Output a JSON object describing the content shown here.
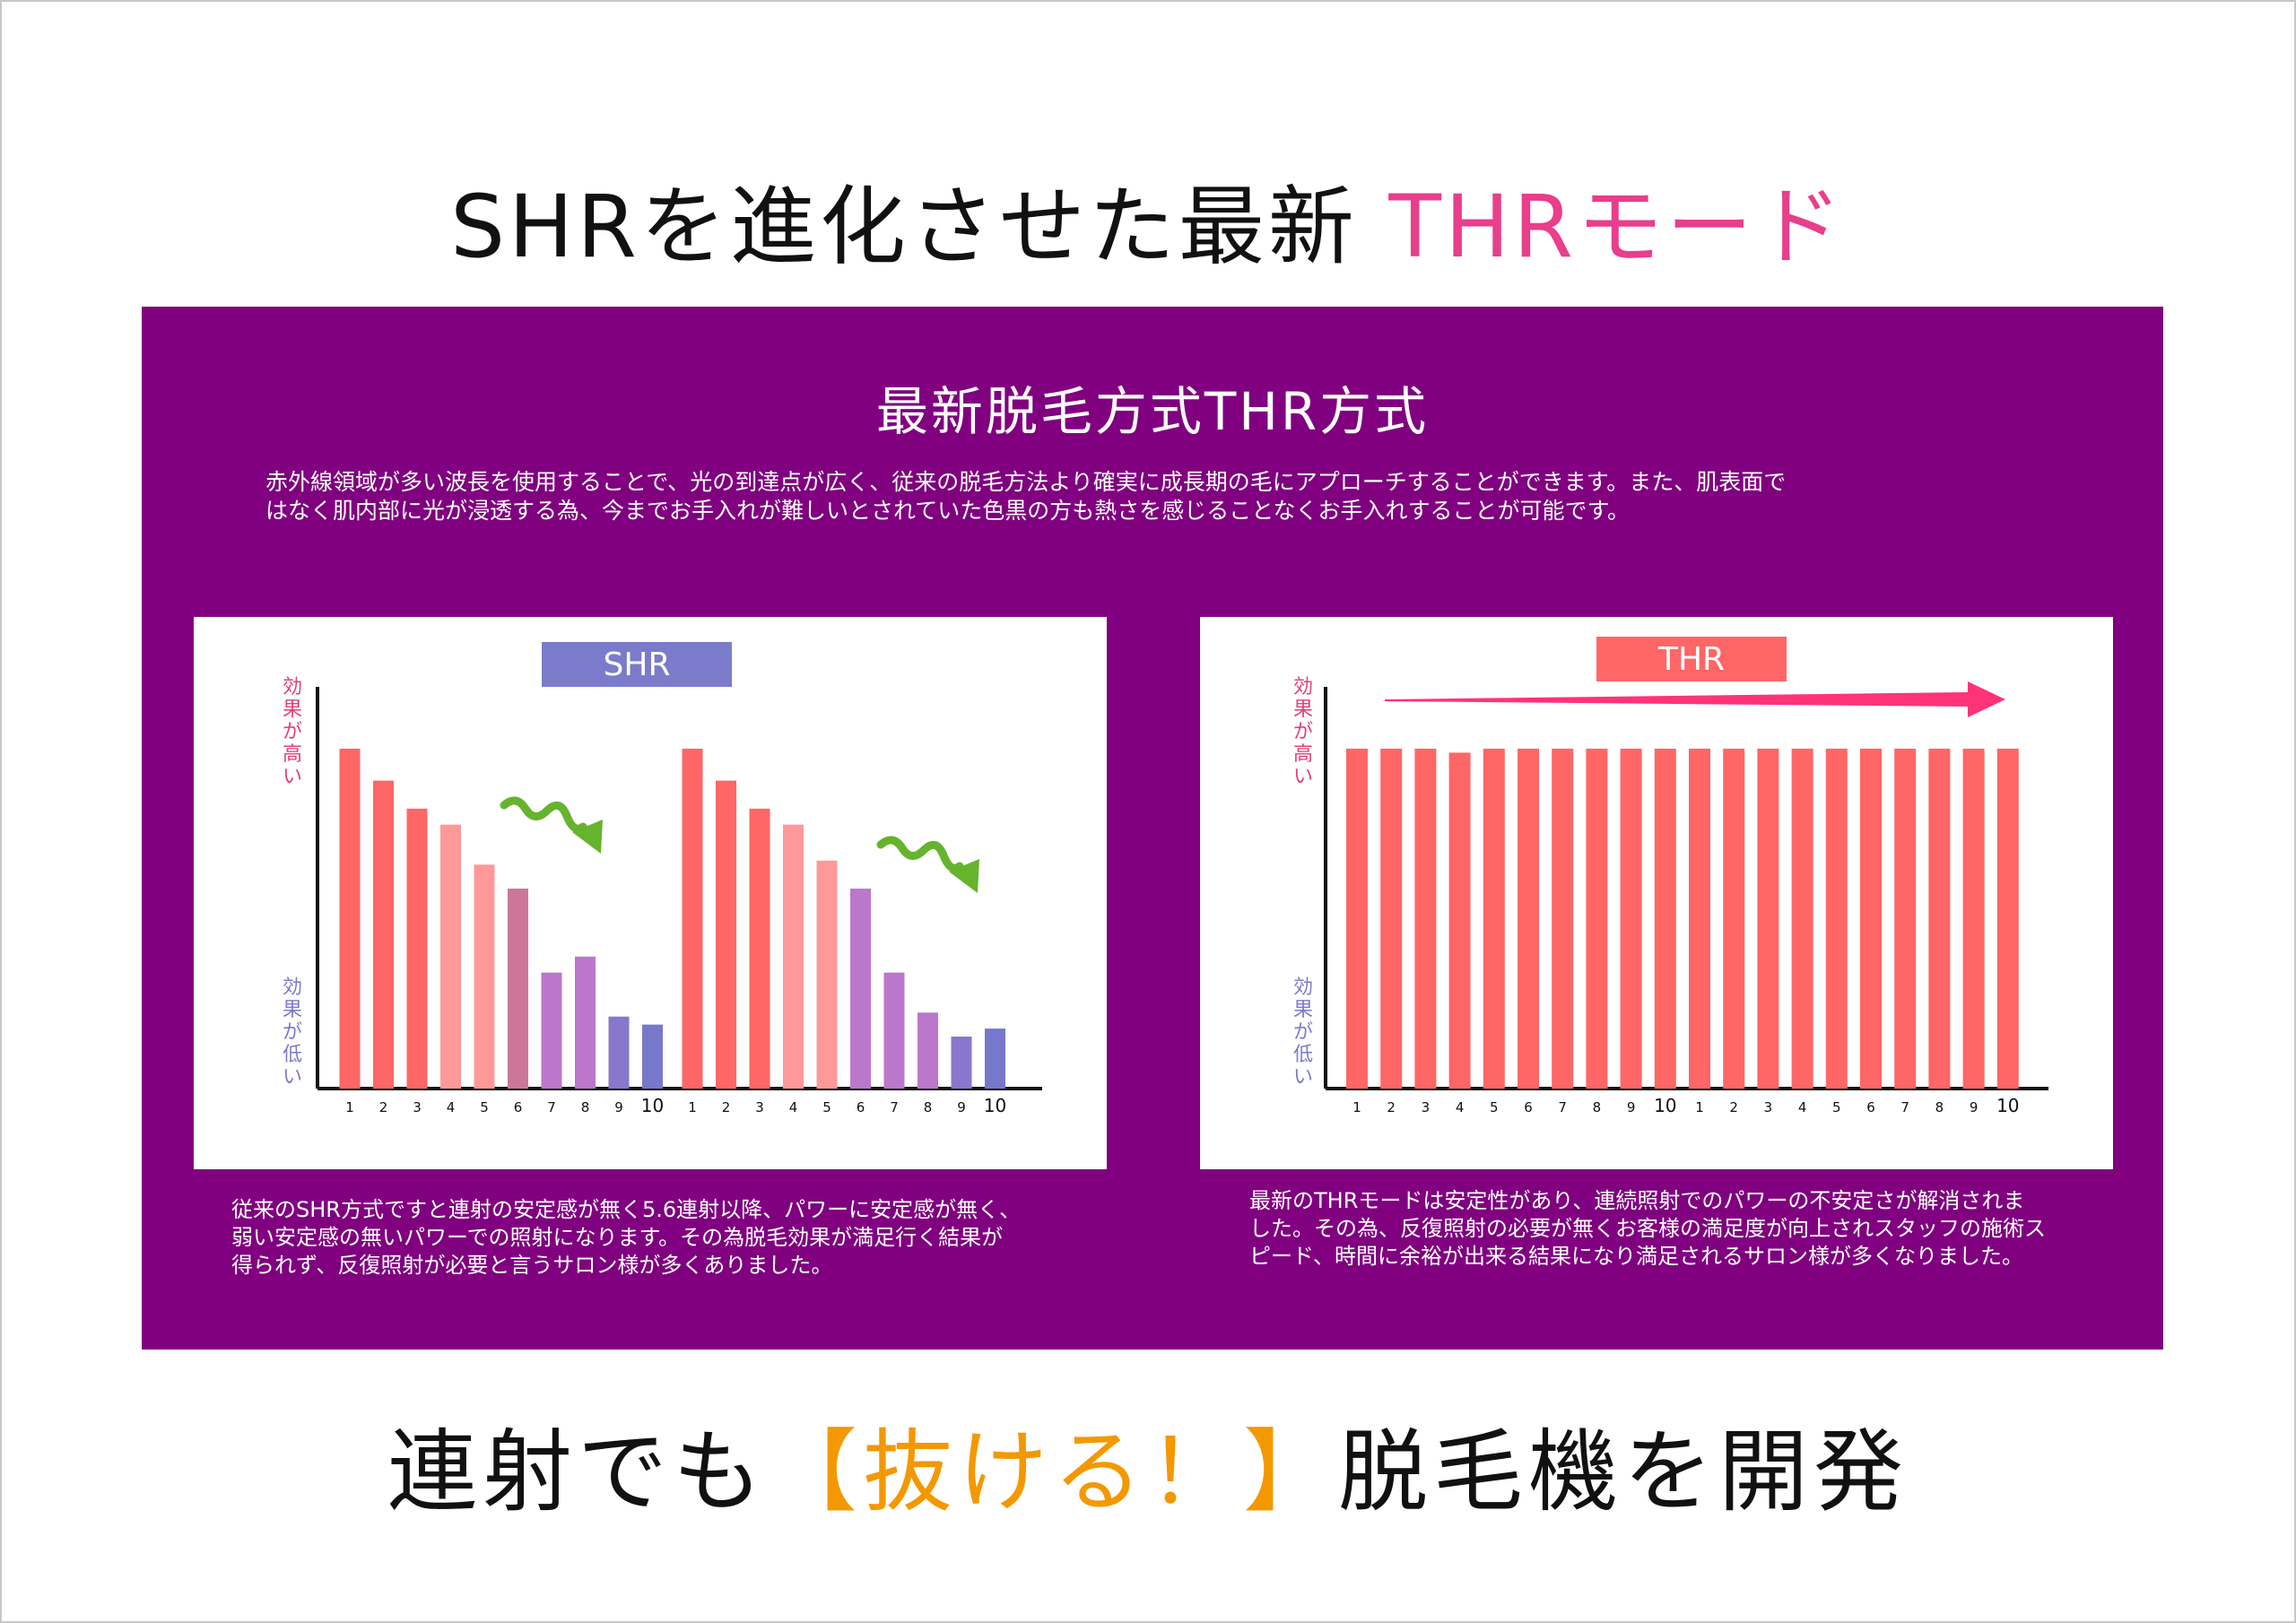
{
  "headline_top": {
    "main": "SHRを進化させた最新 ",
    "accent": "THRモード"
  },
  "panel": {
    "title": "最新脱毛方式THR方式",
    "description_lines": [
      "赤外線領域が多い波長を使用することで、光の到達点が広く、従来の脱毛方法より確実に成長期の毛にアプローチすることができます。また、肌表面で",
      "はなく肌内部に光が浸透する為、今までお手入れが難しいとされていた色黒の方も熱さを感じることなくお手入れすることが可能です。"
    ]
  },
  "captions": {
    "shr": [
      "従来のSHR方式ですと連射の安定感が無く5.6連射以降、パワーに安定感が無く、",
      "弱い安定感の無いパワーでの照射になります。その為脱毛効果が満足行く結果が",
      "得られず、反復照射が必要と言うサロン様が多くありました。"
    ],
    "thr": [
      "最新のTHRモードは安定性があり、連続照射でのパワーの不安定さが解消されま",
      "した。その為、反復照射の必要が無くお客様の満足度が向上されスタッフの施術ス",
      "ピード、時間に余裕が出来る結果になり満足されるサロン様が多くなりました。"
    ]
  },
  "headline_bottom": {
    "before": "連射でも",
    "bracket_text": "【抜ける！】",
    "after": "脱毛機を開発"
  },
  "chart_data": [
    {
      "type": "bar",
      "title": "SHR",
      "y_label_high": "効果が高い",
      "y_label_low": "効果が低い",
      "categories": [
        "1",
        "2",
        "3",
        "4",
        "5",
        "6",
        "7",
        "8",
        "9",
        "10",
        "1",
        "2",
        "3",
        "4",
        "5",
        "6",
        "7",
        "8",
        "9",
        "10"
      ],
      "values": [
        85,
        77,
        70,
        66,
        56,
        50,
        29,
        33,
        18,
        16,
        85,
        77,
        70,
        66,
        57,
        50,
        29,
        19,
        13,
        15
      ],
      "colors": [
        "#ff6666",
        "#ff6666",
        "#ff6666",
        "#ff9999",
        "#ff9999",
        "#cc7799",
        "#bb77cc",
        "#bb77cc",
        "#8877cc",
        "#7777cc",
        "#ff6666",
        "#ff6666",
        "#ff6666",
        "#ff9999",
        "#ff9999",
        "#bb77cc",
        "#bb77cc",
        "#bb77cc",
        "#8877cc",
        "#7777cc"
      ],
      "title_color": "#7b7bcc",
      "arrow_icon": "wavy-down-arrow-icon",
      "arrow_color": "#66b32e",
      "label_high_color": "#e0407a",
      "label_low_color": "#7b7bcc"
    },
    {
      "type": "bar",
      "title": "THR",
      "y_label_high": "効果が高い",
      "y_label_low": "効果が低い",
      "categories": [
        "1",
        "2",
        "3",
        "4",
        "5",
        "6",
        "7",
        "8",
        "9",
        "10",
        "1",
        "2",
        "3",
        "4",
        "5",
        "6",
        "7",
        "8",
        "9",
        "10"
      ],
      "values": [
        85,
        85,
        85,
        84,
        85,
        85,
        85,
        85,
        85,
        85,
        85,
        85,
        85,
        85,
        85,
        85,
        85,
        85,
        85,
        85
      ],
      "bar_color": "#ff6666",
      "title_color": "#ff6666",
      "arrow_icon": "right-arrow-icon",
      "arrow_color": "#ff3377",
      "label_high_color": "#e0407a",
      "label_low_color": "#7b7bcc"
    }
  ]
}
